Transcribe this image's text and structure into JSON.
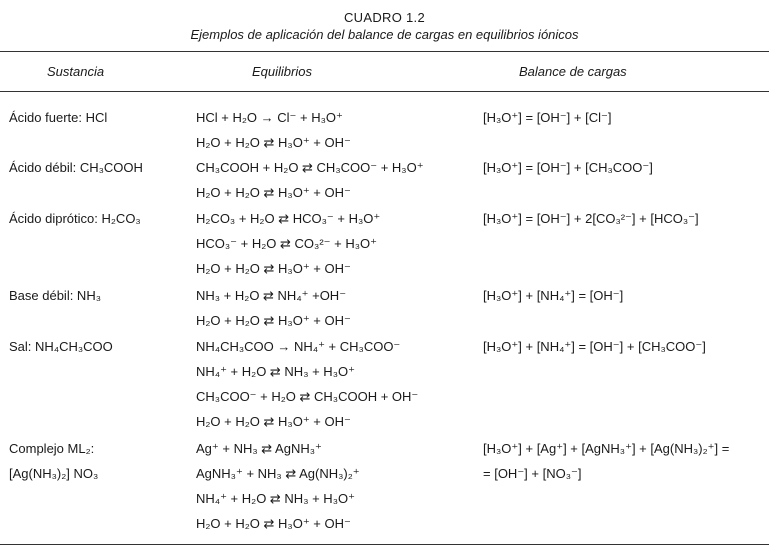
{
  "caption": {
    "title": "CUADRO 1.2",
    "subtitle": "Ejemplos de aplicación del balance de cargas en equilibrios iónicos"
  },
  "headers": {
    "substance": "Sustancia",
    "equilibria": "Equilibrios",
    "balance": "Balance de cargas"
  },
  "rows": [
    {
      "substance": [
        "Ácido fuerte: HCl"
      ],
      "equilibria": [
        "HCl + H₂O  →  Cl⁻ + H₃O⁺",
        "H₂O + H₂O  ⇄  H₃O⁺ + OH⁻"
      ],
      "balance": [
        "[H₃O⁺] = [OH⁻] + [Cl⁻]"
      ]
    },
    {
      "substance": [
        "Ácido débil: CH₃COOH"
      ],
      "equilibria": [
        "CH₃COOH + H₂O  ⇄  CH₃COO⁻ + H₃O⁺",
        "H₂O + H₂O  ⇄  H₃O⁺ + OH⁻"
      ],
      "balance": [
        "[H₃O⁺] = [OH⁻] + [CH₃COO⁻]"
      ]
    },
    {
      "substance": [
        "Ácido diprótico: H₂CO₃"
      ],
      "equilibria": [
        "H₂CO₃ + H₂O  ⇄  HCO₃⁻ + H₃O⁺",
        "HCO₃⁻ + H₂O  ⇄  CO₃²⁻ + H₃O⁺",
        "H₂O + H₂O  ⇄  H₃O⁺ + OH⁻"
      ],
      "balance": [
        "[H₃O⁺] = [OH⁻] + 2[CO₃²⁻] + [HCO₃⁻]"
      ]
    },
    {
      "substance": [
        "Base débil: NH₃"
      ],
      "equilibria": [
        "NH₃ + H₂O  ⇄  NH₄⁺ +OH⁻",
        "H₂O + H₂O  ⇄  H₃O⁺ + OH⁻"
      ],
      "balance": [
        "[H₃O⁺] + [NH₄⁺] = [OH⁻]"
      ]
    },
    {
      "substance": [
        "Sal: NH₄CH₃COO"
      ],
      "equilibria": [
        "NH₄CH₃COO  →  NH₄⁺ + CH₃COO⁻",
        "NH₄⁺ + H₂O  ⇄  NH₃ + H₃O⁺",
        "CH₃COO⁻ + H₂O  ⇄  CH₃COOH + OH⁻",
        "H₂O + H₂O  ⇄  H₃O⁺ + OH⁻"
      ],
      "balance": [
        "[H₃O⁺] + [NH₄⁺] = [OH⁻] + [CH₃COO⁻]"
      ]
    },
    {
      "substance": [
        "Complejo ML₂:",
        "[Ag(NH₃)₂] NO₃"
      ],
      "equilibria": [
        "Ag⁺ + NH₃  ⇄  AgNH₃⁺",
        "AgNH₃⁺ + NH₃  ⇄  Ag(NH₃)₂⁺",
        "NH₄⁺ + H₂O  ⇄  NH₃ + H₃O⁺",
        "H₂O + H₂O  ⇄  H₃O⁺ + OH⁻"
      ],
      "balance": [
        "[H₃O⁺] + [Ag⁺] + [AgNH₃⁺] + [Ag(NH₃)₂⁺] =",
        "= [OH⁻] + [NO₃⁻]"
      ]
    }
  ]
}
